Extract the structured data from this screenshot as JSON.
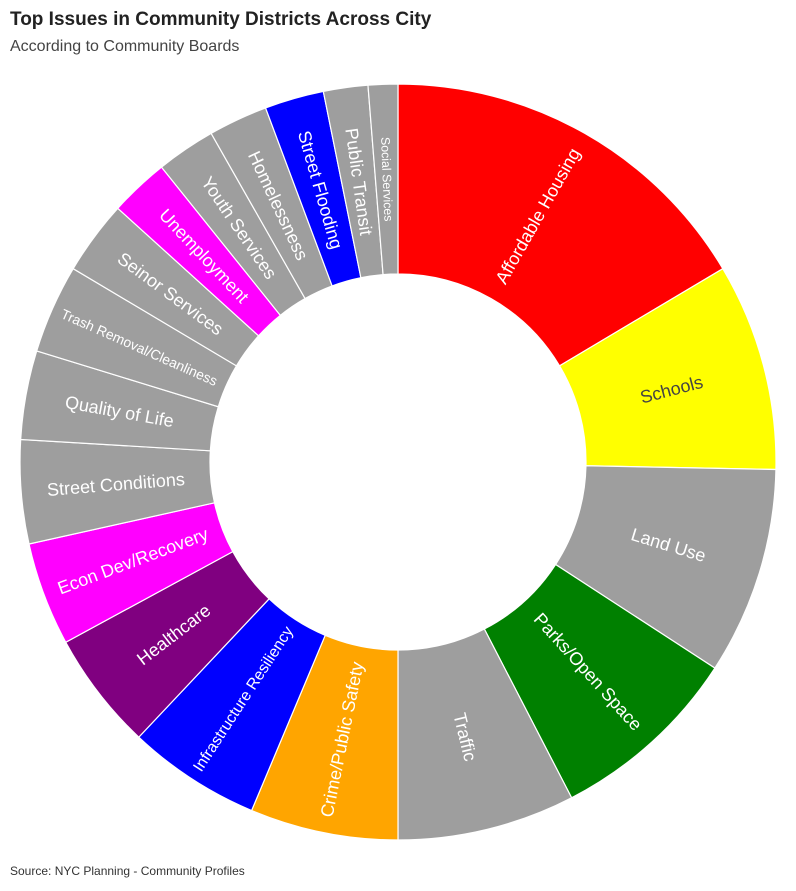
{
  "title": "Top Issues in Community Districts Across City",
  "subtitle": "According to Community Boards",
  "source": "Source: NYC Planning - Community Profiles",
  "chart_data": {
    "type": "pie",
    "style": "donut",
    "unit": "community districts",
    "categories": [
      "Affordable Housing",
      "Schools",
      "Land Use",
      "Parks/Open Space",
      "Traffic",
      "Crime/Public Safety",
      "Infrastructure Resiliency",
      "Healthcare",
      "Econ Dev/Recovery",
      "Street Conditions",
      "Quality of Life",
      "Trash Removal/Cleanliness",
      "Seinor Services",
      "Unemployment",
      "Youth Services",
      "Homelessness",
      "Street Flooding",
      "Public Transit",
      "Social Services"
    ],
    "values": [
      26,
      14,
      14,
      13,
      12,
      10,
      9,
      8,
      7,
      7,
      6,
      6,
      5,
      4,
      4,
      4,
      4,
      3,
      2
    ],
    "colors": [
      "#ff0000",
      "#ffff00",
      "#9e9e9e",
      "#008000",
      "#9e9e9e",
      "#ffa500",
      "#0000ff",
      "#800080",
      "#ff00ff",
      "#9e9e9e",
      "#9e9e9e",
      "#9e9e9e",
      "#9e9e9e",
      "#ff00ff",
      "#9e9e9e",
      "#9e9e9e",
      "#0000ff",
      "#9e9e9e",
      "#9e9e9e"
    ],
    "label_colors": [
      "#ffffff",
      "#444444",
      "#ffffff",
      "#ffffff",
      "#ffffff",
      "#ffffff",
      "#ffffff",
      "#ffffff",
      "#ffffff",
      "#ffffff",
      "#ffffff",
      "#ffffff",
      "#ffffff",
      "#ffffff",
      "#ffffff",
      "#ffffff",
      "#ffffff",
      "#ffffff",
      "#ffffff"
    ],
    "start": "top",
    "direction": "clockwise"
  }
}
